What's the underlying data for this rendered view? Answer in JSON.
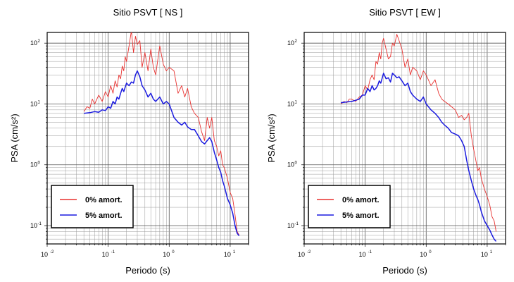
{
  "chart_data": [
    {
      "type": "line",
      "title": "Sitio PSVT [ NS ]",
      "xlabel": "Periodo (s)",
      "ylabel": "PSA (cm/s²)",
      "xscale": "log",
      "yscale": "log",
      "xlim": [
        0.01,
        20
      ],
      "ylim": [
        0.05,
        150
      ],
      "x_ticks": [
        {
          "base": "10",
          "exp": "-2"
        },
        {
          "base": "10",
          "exp": "-1"
        },
        {
          "base": "10",
          "exp": "0"
        },
        {
          "base": "10",
          "exp": "1"
        }
      ],
      "y_ticks": [
        {
          "base": "10",
          "exp": "-1"
        },
        {
          "base": "10",
          "exp": "0"
        },
        {
          "base": "10",
          "exp": "1"
        },
        {
          "base": "10",
          "exp": "2"
        }
      ],
      "grid": true,
      "legend_position": "bottom-left",
      "series": [
        {
          "name": "0% amort.",
          "color": "#e8312f",
          "x": [
            0.04,
            0.045,
            0.05,
            0.055,
            0.06,
            0.07,
            0.08,
            0.09,
            0.1,
            0.11,
            0.12,
            0.13,
            0.14,
            0.15,
            0.16,
            0.17,
            0.18,
            0.19,
            0.2,
            0.22,
            0.24,
            0.26,
            0.28,
            0.3,
            0.33,
            0.36,
            0.4,
            0.45,
            0.5,
            0.55,
            0.6,
            0.7,
            0.8,
            0.9,
            1.0,
            1.2,
            1.4,
            1.6,
            1.8,
            2.0,
            2.3,
            2.6,
            3.0,
            3.4,
            3.8,
            4.2,
            4.6,
            5.0,
            5.5,
            6.0,
            6.5,
            7.0,
            7.5,
            8.0,
            9.0,
            10.0,
            11.0,
            12.0,
            13.0,
            14.0
          ],
          "values": [
            7.5,
            9,
            8.5,
            12,
            10,
            14,
            11,
            16,
            13,
            20,
            15,
            24,
            19,
            30,
            26,
            42,
            35,
            60,
            50,
            90,
            160,
            70,
            130,
            95,
            110,
            40,
            70,
            35,
            80,
            40,
            30,
            90,
            45,
            35,
            40,
            35,
            15,
            20,
            13,
            18,
            9,
            7,
            6,
            3.5,
            2.5,
            6,
            4,
            6,
            2.5,
            2,
            1.4,
            1.7,
            1.0,
            0.9,
            0.6,
            0.35,
            0.28,
            0.15,
            0.08,
            0.07
          ]
        },
        {
          "name": "5% amort.",
          "color": "#1a1adf",
          "x": [
            0.04,
            0.05,
            0.06,
            0.07,
            0.08,
            0.09,
            0.1,
            0.11,
            0.12,
            0.13,
            0.14,
            0.15,
            0.16,
            0.17,
            0.18,
            0.2,
            0.22,
            0.24,
            0.26,
            0.28,
            0.3,
            0.33,
            0.36,
            0.4,
            0.45,
            0.5,
            0.55,
            0.6,
            0.7,
            0.8,
            0.9,
            1.0,
            1.2,
            1.4,
            1.6,
            1.8,
            2.0,
            2.3,
            2.6,
            3.0,
            3.4,
            3.8,
            4.2,
            4.6,
            5.0,
            5.5,
            6.0,
            6.5,
            7.0,
            7.5,
            8.0,
            9.0,
            10.0,
            11.0,
            12.0,
            13.0,
            14.0
          ],
          "values": [
            7,
            7.2,
            7.5,
            7.3,
            8,
            7.8,
            9,
            8.5,
            11,
            10,
            13,
            12,
            15,
            18,
            16,
            22,
            20,
            23,
            22,
            30,
            35,
            28,
            20,
            17,
            13,
            15,
            12,
            11,
            13,
            10,
            11,
            10,
            6,
            5,
            4.5,
            5,
            4.2,
            3.8,
            3.8,
            3,
            2.4,
            2.2,
            2.5,
            2.8,
            2.4,
            1.6,
            1.2,
            0.9,
            0.75,
            0.55,
            0.45,
            0.28,
            0.22,
            0.16,
            0.1,
            0.075,
            0.068
          ]
        }
      ]
    },
    {
      "type": "line",
      "title": "Sitio PSVT [ EW ]",
      "xlabel": "Periodo (s)",
      "ylabel": "PSA (cm/s²)",
      "xscale": "log",
      "yscale": "log",
      "xlim": [
        0.01,
        20
      ],
      "ylim": [
        0.05,
        150
      ],
      "x_ticks": [
        {
          "base": "10",
          "exp": "-2"
        },
        {
          "base": "10",
          "exp": "-1"
        },
        {
          "base": "10",
          "exp": "0"
        },
        {
          "base": "10",
          "exp": "1"
        }
      ],
      "y_ticks": [
        {
          "base": "10",
          "exp": "-1"
        },
        {
          "base": "10",
          "exp": "0"
        },
        {
          "base": "10",
          "exp": "1"
        },
        {
          "base": "10",
          "exp": "2"
        }
      ],
      "grid": true,
      "legend_position": "bottom-left",
      "series": [
        {
          "name": "0% amort.",
          "color": "#e8312f",
          "x": [
            0.04,
            0.045,
            0.05,
            0.055,
            0.06,
            0.07,
            0.08,
            0.09,
            0.1,
            0.11,
            0.12,
            0.13,
            0.14,
            0.15,
            0.16,
            0.17,
            0.18,
            0.19,
            0.2,
            0.22,
            0.24,
            0.26,
            0.28,
            0.3,
            0.33,
            0.36,
            0.4,
            0.45,
            0.5,
            0.55,
            0.6,
            0.7,
            0.8,
            0.9,
            1.0,
            1.2,
            1.4,
            1.6,
            1.8,
            2.0,
            2.3,
            2.6,
            3.0,
            3.4,
            3.8,
            4.2,
            4.6,
            5.0,
            5.5,
            6.0,
            6.5,
            7.0,
            7.5,
            8.0,
            9.0,
            10.0,
            11.0,
            12.0,
            13.0,
            14.0
          ],
          "values": [
            10,
            11,
            10.5,
            12,
            12,
            11,
            13,
            14,
            20,
            17,
            25,
            30,
            25,
            50,
            45,
            70,
            55,
            100,
            120,
            80,
            55,
            60,
            100,
            90,
            140,
            110,
            80,
            40,
            55,
            30,
            40,
            35,
            25,
            35,
            30,
            20,
            25,
            15,
            12,
            11,
            10,
            9,
            8,
            6,
            6.5,
            5.5,
            6,
            7,
            3,
            1.8,
            1.2,
            0.8,
            0.9,
            0.6,
            0.4,
            0.3,
            0.22,
            0.14,
            0.12,
            0.08
          ]
        },
        {
          "name": "5% amort.",
          "color": "#1a1adf",
          "x": [
            0.04,
            0.05,
            0.06,
            0.07,
            0.08,
            0.09,
            0.1,
            0.11,
            0.12,
            0.13,
            0.14,
            0.15,
            0.16,
            0.17,
            0.18,
            0.2,
            0.22,
            0.24,
            0.26,
            0.28,
            0.3,
            0.33,
            0.36,
            0.4,
            0.45,
            0.5,
            0.55,
            0.6,
            0.7,
            0.8,
            0.9,
            1.0,
            1.2,
            1.4,
            1.6,
            1.8,
            2.0,
            2.3,
            2.6,
            3.0,
            3.4,
            3.8,
            4.2,
            4.6,
            5.0,
            5.5,
            6.0,
            6.5,
            7.0,
            7.5,
            8.0,
            9.0,
            10.0,
            11.0,
            12.0,
            13.0,
            14.0
          ],
          "values": [
            10.5,
            10.8,
            11,
            11.5,
            12,
            14,
            14,
            18,
            16,
            20,
            17,
            18,
            20,
            24,
            22,
            32,
            26,
            27,
            23,
            32,
            30,
            27,
            28,
            24,
            20,
            22,
            16,
            14,
            12,
            11,
            13,
            10,
            8,
            7,
            6,
            5,
            4.5,
            4,
            3.4,
            3.2,
            3.0,
            2.5,
            2.0,
            1.2,
            0.8,
            0.55,
            0.4,
            0.32,
            0.27,
            0.22,
            0.17,
            0.12,
            0.1,
            0.085,
            0.07,
            0.06,
            0.055
          ]
        }
      ]
    }
  ]
}
